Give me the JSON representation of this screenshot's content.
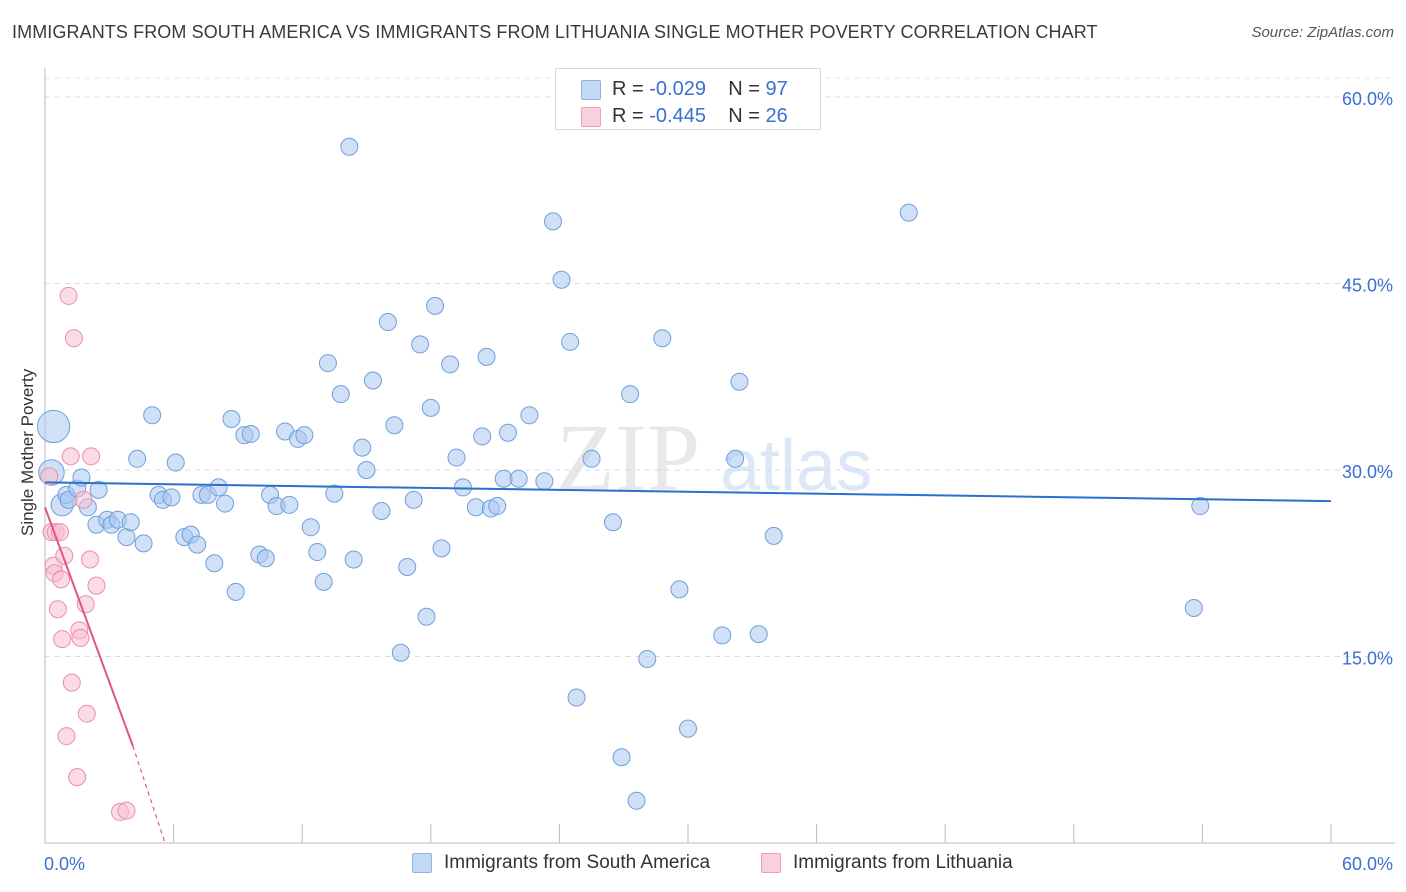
{
  "title": "IMMIGRANTS FROM SOUTH AMERICA VS IMMIGRANTS FROM LITHUANIA SINGLE MOTHER POVERTY CORRELATION CHART",
  "source": "Source: ZipAtlas.com",
  "watermark": {
    "zip": "ZIP",
    "atlas": "atlas"
  },
  "stats": {
    "blue": {
      "r_label": "R =",
      "r_value": "-0.029",
      "n_label": "N =",
      "n_value": "97",
      "color": "#a9c6f0"
    },
    "pink": {
      "r_label": "R =",
      "r_value": "-0.445",
      "n_label": "N =",
      "n_value": "26",
      "color": "#f7bfd0"
    }
  },
  "legend": {
    "blue_label": "Immigrants from South America",
    "pink_label": "Immigrants from Lithuania"
  },
  "chart_data": {
    "type": "scatter",
    "title": "IMMIGRANTS FROM SOUTH AMERICA VS IMMIGRANTS FROM LITHUANIA SINGLE MOTHER POVERTY CORRELATION CHART",
    "xlabel": "",
    "ylabel": "Single Mother Poverty",
    "xlim": [
      0,
      60
    ],
    "ylim": [
      0,
      60
    ],
    "x_tick_labels": [
      "0.0%",
      "60.0%"
    ],
    "y_ticks": [
      15,
      30,
      45,
      60
    ],
    "y_tick_labels": [
      "15.0%",
      "30.0%",
      "45.0%",
      "60.0%"
    ],
    "grid": true,
    "series": [
      {
        "name": "Immigrants from South America",
        "color": "#a9c6f0",
        "stroke": "#6f9fdc",
        "trend": {
          "x": [
            0,
            60
          ],
          "y": [
            29.0,
            27.5
          ],
          "color": "#2b6fcf"
        },
        "points": [
          [
            0.4,
            33.5,
            1.9
          ],
          [
            0.3,
            29.8,
            1.5
          ],
          [
            0.8,
            27.2,
            1.3
          ],
          [
            1.0,
            28.0,
            1.0
          ],
          [
            1.1,
            27.6,
            1.0
          ],
          [
            1.5,
            28.5,
            1.0
          ],
          [
            1.7,
            29.4,
            1.0
          ],
          [
            2.0,
            27.0,
            1.0
          ],
          [
            2.4,
            25.6,
            1.0
          ],
          [
            2.5,
            28.4,
            1.0
          ],
          [
            2.9,
            26.0,
            1.0
          ],
          [
            3.1,
            25.6,
            1.0
          ],
          [
            3.4,
            26.0,
            1.0
          ],
          [
            3.8,
            24.6,
            1.0
          ],
          [
            4.0,
            25.8,
            1.0
          ],
          [
            4.3,
            30.9,
            1.0
          ],
          [
            4.6,
            24.1,
            1.0
          ],
          [
            5.0,
            34.4,
            1.0
          ],
          [
            5.3,
            28.0,
            1.0
          ],
          [
            5.5,
            27.6,
            1.0
          ],
          [
            5.9,
            27.8,
            1.0
          ],
          [
            6.1,
            30.6,
            1.0
          ],
          [
            6.5,
            24.6,
            1.0
          ],
          [
            6.8,
            24.8,
            1.0
          ],
          [
            7.1,
            24.0,
            1.0
          ],
          [
            7.3,
            28.0,
            1.0
          ],
          [
            7.6,
            28.0,
            1.0
          ],
          [
            7.9,
            22.5,
            1.0
          ],
          [
            8.1,
            28.6,
            1.0
          ],
          [
            8.4,
            27.3,
            1.0
          ],
          [
            8.7,
            34.1,
            1.0
          ],
          [
            8.9,
            20.2,
            1.0
          ],
          [
            9.3,
            32.8,
            1.0
          ],
          [
            9.6,
            32.9,
            1.0
          ],
          [
            10.0,
            23.2,
            1.0
          ],
          [
            10.3,
            22.9,
            1.0
          ],
          [
            10.5,
            28.0,
            1.0
          ],
          [
            10.8,
            27.1,
            1.0
          ],
          [
            11.2,
            33.1,
            1.0
          ],
          [
            11.4,
            27.2,
            1.0
          ],
          [
            11.8,
            32.5,
            1.0
          ],
          [
            12.1,
            32.8,
            1.0
          ],
          [
            12.4,
            25.4,
            1.0
          ],
          [
            12.7,
            23.4,
            1.0
          ],
          [
            13.0,
            21.0,
            1.0
          ],
          [
            13.2,
            38.6,
            1.0
          ],
          [
            13.5,
            28.1,
            1.0
          ],
          [
            13.8,
            36.1,
            1.0
          ],
          [
            14.2,
            56.0,
            1.0
          ],
          [
            14.4,
            22.8,
            1.0
          ],
          [
            14.8,
            31.8,
            1.0
          ],
          [
            15.0,
            30.0,
            1.0
          ],
          [
            15.3,
            37.2,
            1.0
          ],
          [
            15.7,
            26.7,
            1.0
          ],
          [
            16.0,
            41.9,
            1.0
          ],
          [
            16.3,
            33.6,
            1.0
          ],
          [
            16.6,
            15.3,
            1.0
          ],
          [
            16.9,
            22.2,
            1.0
          ],
          [
            17.2,
            27.6,
            1.0
          ],
          [
            17.5,
            40.1,
            1.0
          ],
          [
            17.8,
            18.2,
            1.0
          ],
          [
            18.0,
            35.0,
            1.0
          ],
          [
            18.2,
            43.2,
            1.0
          ],
          [
            18.5,
            23.7,
            1.0
          ],
          [
            18.9,
            38.5,
            1.0
          ],
          [
            19.2,
            31.0,
            1.0
          ],
          [
            19.5,
            28.6,
            1.0
          ],
          [
            20.1,
            27.0,
            1.0
          ],
          [
            20.4,
            32.7,
            1.0
          ],
          [
            20.6,
            39.1,
            1.0
          ],
          [
            20.8,
            26.9,
            1.0
          ],
          [
            21.1,
            27.1,
            1.0
          ],
          [
            21.4,
            29.3,
            1.0
          ],
          [
            21.6,
            33.0,
            1.0
          ],
          [
            22.1,
            29.3,
            1.0
          ],
          [
            22.6,
            34.4,
            1.0
          ],
          [
            23.3,
            29.1,
            1.0
          ],
          [
            23.7,
            50.0,
            1.0
          ],
          [
            24.1,
            45.3,
            1.0
          ],
          [
            24.5,
            40.3,
            1.0
          ],
          [
            24.8,
            11.7,
            1.0
          ],
          [
            25.5,
            30.9,
            1.0
          ],
          [
            26.5,
            25.8,
            1.0
          ],
          [
            26.9,
            6.9,
            1.0
          ],
          [
            27.3,
            36.1,
            1.0
          ],
          [
            27.6,
            3.4,
            1.0
          ],
          [
            28.1,
            14.8,
            1.0
          ],
          [
            28.8,
            40.6,
            1.0
          ],
          [
            29.6,
            20.4,
            1.0
          ],
          [
            30.0,
            9.2,
            1.0
          ],
          [
            31.6,
            16.7,
            1.0
          ],
          [
            32.2,
            30.9,
            1.0
          ],
          [
            32.4,
            37.1,
            1.0
          ],
          [
            33.3,
            16.8,
            1.0
          ],
          [
            34.0,
            24.7,
            1.0
          ],
          [
            40.3,
            50.7,
            1.0
          ],
          [
            53.6,
            18.9,
            1.0
          ],
          [
            53.9,
            27.1,
            1.0
          ]
        ]
      },
      {
        "name": "Immigrants from Lithuania",
        "color": "#f7bfd0",
        "stroke": "#e98fab",
        "trend": {
          "x": [
            0,
            4.1
          ],
          "y": [
            27.0,
            7.8
          ],
          "dashed_to": [
            5.6,
            0
          ],
          "color": "#e2528a"
        },
        "points": [
          [
            0.2,
            29.5,
            1.0
          ],
          [
            0.3,
            25.0,
            1.0
          ],
          [
            0.4,
            22.3,
            1.0
          ],
          [
            0.45,
            21.7,
            1.0
          ],
          [
            0.5,
            25.0,
            1.0
          ],
          [
            0.6,
            18.8,
            1.0
          ],
          [
            0.7,
            25.0,
            1.0
          ],
          [
            0.75,
            21.2,
            1.0
          ],
          [
            0.8,
            16.4,
            1.0
          ],
          [
            0.9,
            23.1,
            1.0
          ],
          [
            1.0,
            8.6,
            1.0
          ],
          [
            1.1,
            44.0,
            1.0
          ],
          [
            1.2,
            31.1,
            1.0
          ],
          [
            1.25,
            12.9,
            1.0
          ],
          [
            1.35,
            40.6,
            1.0
          ],
          [
            1.5,
            5.3,
            1.0
          ],
          [
            1.6,
            17.1,
            1.0
          ],
          [
            1.65,
            16.5,
            1.0
          ],
          [
            1.8,
            27.6,
            1.0
          ],
          [
            1.9,
            19.2,
            1.0
          ],
          [
            1.95,
            10.4,
            1.0
          ],
          [
            2.1,
            22.8,
            1.0
          ],
          [
            2.15,
            31.1,
            1.0
          ],
          [
            2.4,
            20.7,
            1.0
          ],
          [
            3.5,
            2.5,
            1.0
          ],
          [
            3.8,
            2.6,
            1.0
          ]
        ]
      }
    ]
  }
}
